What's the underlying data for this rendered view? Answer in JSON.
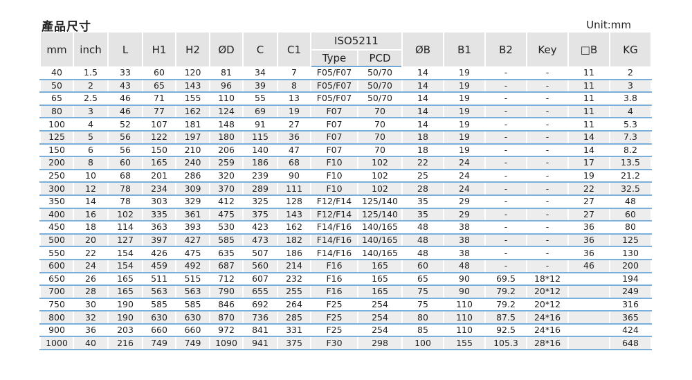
{
  "title": "產品尺寸",
  "unit": "Unit:mm",
  "colors": {
    "header_bg": "#e4e4e4",
    "alt_row_bg": "#ededed",
    "row_line": "#7aaedb"
  },
  "table": {
    "headers": [
      "mm",
      "inch",
      "L",
      "H1",
      "H2",
      "ØD",
      "C",
      "C1",
      "ISO5211",
      "ØB",
      "B1",
      "B2",
      "Key",
      "□B",
      "KG"
    ],
    "sub_headers": [
      "Type",
      "PCD"
    ],
    "rows": [
      [
        "40",
        "1.5",
        "33",
        "60",
        "120",
        "81",
        "34",
        "7",
        "F05/F07",
        "50/70",
        "14",
        "19",
        "-",
        "-",
        "11",
        "2"
      ],
      [
        "50",
        "2",
        "43",
        "65",
        "143",
        "96",
        "39",
        "8",
        "F05/F07",
        "50/70",
        "14",
        "19",
        "-",
        "-",
        "11",
        "3"
      ],
      [
        "65",
        "2.5",
        "46",
        "71",
        "155",
        "110",
        "55",
        "13",
        "F05/F07",
        "50/70",
        "14",
        "19",
        "-",
        "-",
        "11",
        "3.8"
      ],
      [
        "80",
        "3",
        "46",
        "77",
        "162",
        "124",
        "69",
        "19",
        "F07",
        "70",
        "14",
        "19",
        "-",
        "-",
        "11",
        "4"
      ],
      [
        "100",
        "4",
        "52",
        "107",
        "181",
        "148",
        "91",
        "27",
        "F07",
        "70",
        "14",
        "19",
        "-",
        "-",
        "11",
        "5.3"
      ],
      [
        "125",
        "5",
        "56",
        "122",
        "197",
        "180",
        "115",
        "36",
        "F07",
        "70",
        "18",
        "19",
        "-",
        "-",
        "14",
        "7.3"
      ],
      [
        "150",
        "6",
        "56",
        "150",
        "210",
        "206",
        "140",
        "47",
        "F07",
        "70",
        "18",
        "19",
        "-",
        "-",
        "14",
        "8.2"
      ],
      [
        "200",
        "8",
        "60",
        "165",
        "240",
        "259",
        "186",
        "68",
        "F10",
        "102",
        "22",
        "24",
        "-",
        "-",
        "17",
        "13.5"
      ],
      [
        "250",
        "10",
        "68",
        "201",
        "286",
        "320",
        "239",
        "90",
        "F10",
        "102",
        "25",
        "24",
        "-",
        "-",
        "19",
        "21.2"
      ],
      [
        "300",
        "12",
        "78",
        "234",
        "309",
        "370",
        "289",
        "111",
        "F10",
        "102",
        "28",
        "24",
        "-",
        "-",
        "22",
        "32.5"
      ],
      [
        "350",
        "14",
        "78",
        "303",
        "329",
        "412",
        "325",
        "128",
        "F12/F14",
        "125/140",
        "35",
        "29",
        "-",
        "-",
        "27",
        "48"
      ],
      [
        "400",
        "16",
        "102",
        "335",
        "361",
        "475",
        "375",
        "143",
        "F12/F14",
        "125/140",
        "35",
        "29",
        "-",
        "-",
        "27",
        "60"
      ],
      [
        "450",
        "18",
        "114",
        "363",
        "393",
        "530",
        "423",
        "162",
        "F14/F16",
        "140/165",
        "48",
        "38",
        "-",
        "-",
        "36",
        "80"
      ],
      [
        "500",
        "20",
        "127",
        "397",
        "427",
        "585",
        "473",
        "182",
        "F14/F16",
        "140/165",
        "48",
        "38",
        "-",
        "-",
        "36",
        "125"
      ],
      [
        "550",
        "22",
        "154",
        "426",
        "475",
        "635",
        "507",
        "186",
        "F14/F16",
        "140/165",
        "48",
        "38",
        "-",
        "-",
        "36",
        "130"
      ],
      [
        "600",
        "24",
        "154",
        "459",
        "492",
        "687",
        "560",
        "214",
        "F16",
        "165",
        "60",
        "48",
        "-",
        "-",
        "46",
        "200"
      ],
      [
        "650",
        "26",
        "165",
        "511",
        "515",
        "712",
        "607",
        "232",
        "F16",
        "165",
        "65",
        "90",
        "69.5",
        "18*12",
        "",
        "194"
      ],
      [
        "700",
        "28",
        "165",
        "563",
        "563",
        "790",
        "655",
        "255",
        "F16",
        "165",
        "75",
        "90",
        "79.2",
        "20*12",
        "",
        "249"
      ],
      [
        "750",
        "30",
        "190",
        "585",
        "585",
        "846",
        "692",
        "264",
        "F25",
        "254",
        "75",
        "110",
        "79.2",
        "20*12",
        "",
        "316"
      ],
      [
        "800",
        "32",
        "190",
        "630",
        "630",
        "870",
        "736",
        "285",
        "F25",
        "254",
        "80",
        "110",
        "87.5",
        "24*16",
        "",
        "365"
      ],
      [
        "900",
        "36",
        "203",
        "660",
        "660",
        "972",
        "841",
        "331",
        "F25",
        "254",
        "85",
        "110",
        "92.5",
        "24*16",
        "",
        "424"
      ],
      [
        "1000",
        "40",
        "216",
        "749",
        "749",
        "1090",
        "941",
        "375",
        "F30",
        "298",
        "100",
        "155",
        "105.3",
        "28*16",
        "",
        "648"
      ]
    ]
  }
}
